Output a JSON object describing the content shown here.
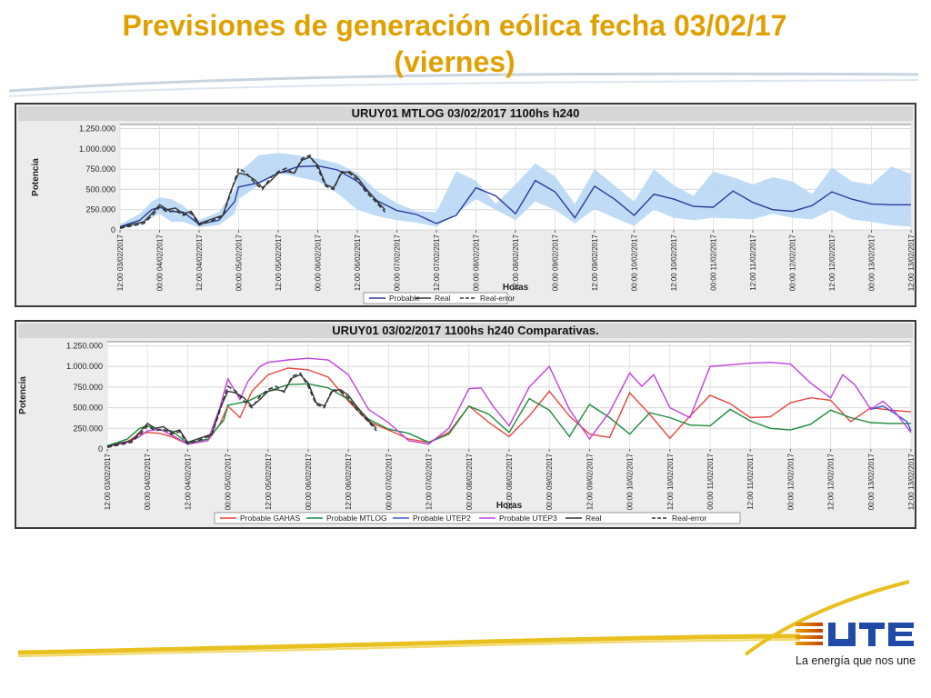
{
  "page": {
    "title_line1": "Previsiones de generación eólica fecha 03/02/17",
    "title_line2": "(viernes)",
    "slogan": "La energía que nos une",
    "colors": {
      "title": "#e0a000",
      "band": "#b9d7f5",
      "mtlog": "#2a3a9a",
      "gahas": "#e8453c",
      "mtlog2": "#1e8a3c",
      "utep2": "#3a5ad0",
      "utep3": "#c040e0",
      "real": "#333333"
    }
  },
  "chart_data": [
    {
      "type": "line",
      "title": "URUY01  MTLOG  03/02/2017  1100hs   h240",
      "xlabel": "Horas",
      "ylabel": "Potencia",
      "ylim": [
        0,
        1300000
      ],
      "yticks": [
        0,
        250000,
        500000,
        750000,
        1000000,
        1250000
      ],
      "ytick_labels": [
        "0",
        "250.000",
        "500.000",
        "750.000",
        "1.000.000",
        "1.250.000"
      ],
      "xlim": [
        0,
        20
      ],
      "xticks": [
        0,
        1,
        2,
        3,
        4,
        5,
        6,
        7,
        8,
        9,
        10,
        11,
        12,
        13,
        14,
        15,
        16,
        17,
        18,
        19,
        20
      ],
      "xtick_labels": [
        "12:00 03/02/2017",
        "00:00 04/02/2017",
        "12:00 04/02/2017",
        "00:00 05/02/2017",
        "12:00 05/02/2017",
        "00:00 06/02/2017",
        "12:00 06/02/2017",
        "00:00 07/02/2017",
        "12:00 07/02/2017",
        "00:00 08/02/2017",
        "12:00 08/02/2017",
        "00:00 09/02/2017",
        "12:00 09/02/2017",
        "00:00 10/02/2017",
        "12:00 10/02/2017",
        "00:00 11/02/2017",
        "12:00 11/02/2017",
        "00:00 12/02/2017",
        "12:00 12/02/2017",
        "00:00 13/02/2017",
        "12:00 13/02/2017"
      ],
      "legend": [
        "Probable",
        "Real",
        "Real-error"
      ],
      "legend_position": "bottom",
      "band": {
        "x": [
          0,
          0.5,
          0.8,
          1.0,
          1.3,
          1.6,
          2.0,
          2.5,
          2.9,
          3.0,
          3.5,
          4.0,
          4.5,
          5.0,
          5.5,
          6.0,
          6.5,
          7.0,
          7.5,
          8.0,
          8.5,
          9.0,
          9.5,
          10.0,
          10.5,
          11.0,
          11.5,
          12.0,
          12.5,
          13.0,
          13.5,
          14.0,
          14.5,
          15.0,
          15.5,
          16.0,
          16.5,
          17.0,
          17.5,
          18.0,
          18.5,
          19.0,
          19.5,
          20.0
        ],
        "low": [
          20000,
          60000,
          150000,
          200000,
          100000,
          100000,
          30000,
          60000,
          200000,
          380000,
          550000,
          700000,
          650000,
          600000,
          450000,
          250000,
          170000,
          120000,
          90000,
          40000,
          200000,
          380000,
          250000,
          120000,
          350000,
          250000,
          80000,
          260000,
          150000,
          50000,
          250000,
          150000,
          120000,
          150000,
          140000,
          130000,
          200000,
          150000,
          130000,
          250000,
          130000,
          100000,
          60000,
          40000
        ],
        "high": [
          70000,
          200000,
          350000,
          400000,
          380000,
          300000,
          120000,
          220000,
          500000,
          700000,
          920000,
          950000,
          920000,
          880000,
          820000,
          700000,
          480000,
          330000,
          230000,
          220000,
          720000,
          610000,
          320000,
          560000,
          820000,
          660000,
          320000,
          750000,
          550000,
          350000,
          750000,
          550000,
          420000,
          720000,
          650000,
          560000,
          650000,
          600000,
          440000,
          770000,
          600000,
          560000,
          780000,
          690000
        ]
      },
      "series": [
        {
          "name": "Probable",
          "color": "#2a3a9a",
          "x": [
            0,
            0.5,
            0.8,
            1.0,
            1.3,
            1.6,
            2.0,
            2.5,
            2.9,
            3.0,
            3.5,
            4.0,
            4.5,
            5.0,
            5.5,
            6.0,
            6.5,
            7.0,
            7.5,
            8.0,
            8.5,
            9.0,
            9.5,
            10.0,
            10.5,
            11.0,
            11.5,
            12.0,
            12.5,
            13.0,
            13.5,
            14.0,
            14.5,
            15.0,
            15.5,
            16.0,
            16.5,
            17.0,
            17.5,
            18.0,
            18.5,
            19.0,
            19.5,
            20.0
          ],
          "y": [
            40000,
            120000,
            250000,
            280000,
            230000,
            220000,
            70000,
            120000,
            350000,
            530000,
            580000,
            700000,
            780000,
            790000,
            740000,
            600000,
            360000,
            240000,
            190000,
            80000,
            180000,
            520000,
            420000,
            200000,
            610000,
            470000,
            150000,
            540000,
            380000,
            180000,
            440000,
            380000,
            290000,
            280000,
            480000,
            340000,
            250000,
            230000,
            300000,
            470000,
            380000,
            320000,
            310000,
            310000
          ]
        },
        {
          "name": "Real",
          "color": "#333333",
          "dash": false,
          "x": [
            0,
            0.3,
            0.6,
            0.8,
            1.0,
            1.2,
            1.4,
            1.6,
            1.8,
            2.0,
            2.3,
            2.6,
            2.8,
            3.0,
            3.2,
            3.4,
            3.6,
            3.8,
            4.0,
            4.2,
            4.4,
            4.6,
            4.8,
            5.0,
            5.2,
            5.4,
            5.6,
            5.8,
            6.0,
            6.2,
            6.5,
            6.7
          ],
          "y": [
            30000,
            70000,
            100000,
            200000,
            310000,
            250000,
            270000,
            200000,
            230000,
            80000,
            130000,
            180000,
            480000,
            700000,
            680000,
            620000,
            520000,
            600000,
            700000,
            720000,
            700000,
            860000,
            900000,
            800000,
            560000,
            520000,
            700000,
            720000,
            650000,
            520000,
            350000,
            250000
          ]
        },
        {
          "name": "Real-error",
          "color": "#333333",
          "dash": true,
          "x": [
            0,
            0.3,
            0.6,
            0.8,
            1.0,
            1.2,
            1.4,
            1.6,
            1.8,
            2.0,
            2.3,
            2.6,
            2.8,
            3.0,
            3.2,
            3.4,
            3.6,
            3.8,
            4.0,
            4.2,
            4.4,
            4.6,
            4.8,
            5.0,
            5.2,
            5.4,
            5.6,
            5.8,
            6.0,
            6.2,
            6.5,
            6.7
          ],
          "y": [
            20000,
            50000,
            80000,
            170000,
            280000,
            220000,
            240000,
            180000,
            210000,
            60000,
            110000,
            170000,
            460000,
            760000,
            700000,
            580000,
            500000,
            640000,
            720000,
            760000,
            690000,
            880000,
            920000,
            760000,
            540000,
            500000,
            720000,
            700000,
            620000,
            480000,
            330000,
            220000
          ]
        }
      ]
    },
    {
      "type": "line",
      "title": "URUY01  03/02/2017  1100hs   h240  Comparativas.",
      "xlabel": "Horas",
      "ylabel": "Potencia",
      "ylim": [
        0,
        1300000
      ],
      "yticks": [
        0,
        250000,
        500000,
        750000,
        1000000,
        1250000
      ],
      "ytick_labels": [
        "0",
        "250.000",
        "500.000",
        "750.000",
        "1.000.000",
        "1.250.000"
      ],
      "xlim": [
        0,
        20
      ],
      "xticks": [
        0,
        1,
        2,
        3,
        4,
        5,
        6,
        7,
        8,
        9,
        10,
        11,
        12,
        13,
        14,
        15,
        16,
        17,
        18,
        19,
        20
      ],
      "xtick_labels": [
        "12:00 03/02/2017",
        "00:00 04/02/2017",
        "12:00 04/02/2017",
        "00:00 05/02/2017",
        "12:00 05/02/2017",
        "00:00 06/02/2017",
        "12:00 06/02/2017",
        "00:00 07/02/2017",
        "12:00 07/02/2017",
        "00:00 08/02/2017",
        "12:00 08/02/2017",
        "00:00 09/02/2017",
        "12:00 09/02/2017",
        "00:00 10/02/2017",
        "12:00 10/02/2017",
        "00:00 11/02/2017",
        "12:00 11/02/2017",
        "00:00 12/02/2017",
        "12:00 12/02/2017",
        "00:00 13/02/2017",
        "12:00 13/02/2017"
      ],
      "legend": [
        "Probable GAHAS",
        "Probable MTLOG",
        "Probable UTEP2",
        "Probable UTEP3",
        "Real",
        "Real-error"
      ],
      "legend_position": "bottom",
      "series": [
        {
          "name": "Probable GAHAS",
          "color": "#e8453c",
          "x": [
            0,
            0.5,
            0.8,
            1.0,
            1.3,
            1.6,
            2.0,
            2.5,
            2.8,
            3.0,
            3.3,
            3.6,
            4.0,
            4.5,
            5.0,
            5.5,
            6.0,
            6.5,
            7.0,
            7.5,
            8.0,
            8.5,
            9.0,
            9.5,
            10.0,
            10.5,
            11.0,
            11.5,
            12.0,
            12.5,
            13.0,
            13.5,
            14.0,
            14.5,
            15.0,
            15.5,
            16.0,
            16.5,
            17.0,
            17.5,
            18.0,
            18.5,
            19.0,
            19.5,
            20.0
          ],
          "y": [
            30000,
            90000,
            180000,
            200000,
            190000,
            150000,
            60000,
            100000,
            300000,
            520000,
            380000,
            700000,
            900000,
            980000,
            960000,
            870000,
            580000,
            330000,
            230000,
            120000,
            80000,
            200000,
            520000,
            320000,
            150000,
            400000,
            700000,
            400000,
            180000,
            140000,
            680000,
            420000,
            130000,
            400000,
            650000,
            550000,
            380000,
            390000,
            560000,
            620000,
            590000,
            330000,
            500000,
            470000,
            450000
          ]
        },
        {
          "name": "Probable MTLOG",
          "color": "#1e8a3c",
          "x": [
            0,
            0.5,
            0.8,
            1.0,
            1.3,
            1.6,
            2.0,
            2.5,
            2.9,
            3.0,
            3.5,
            4.0,
            4.5,
            5.0,
            5.5,
            6.0,
            6.5,
            7.0,
            7.5,
            8.0,
            8.5,
            9.0,
            9.5,
            10.0,
            10.5,
            11.0,
            11.5,
            12.0,
            12.5,
            13.0,
            13.5,
            14.0,
            14.5,
            15.0,
            15.5,
            16.0,
            16.5,
            17.0,
            17.5,
            18.0,
            18.5,
            19.0,
            19.5,
            20.0
          ],
          "y": [
            40000,
            120000,
            250000,
            280000,
            230000,
            220000,
            70000,
            120000,
            350000,
            530000,
            580000,
            700000,
            780000,
            790000,
            740000,
            600000,
            360000,
            240000,
            190000,
            80000,
            180000,
            520000,
            420000,
            200000,
            610000,
            470000,
            150000,
            540000,
            380000,
            180000,
            440000,
            380000,
            290000,
            280000,
            480000,
            340000,
            250000,
            230000,
            300000,
            470000,
            380000,
            320000,
            310000,
            310000
          ]
        },
        {
          "name": "Probable UTEP2",
          "color": "#3a5ad0",
          "x": [
            19.0,
            19.3,
            19.6,
            19.9,
            20.0
          ],
          "y": [
            480000,
            520000,
            430000,
            330000,
            220000
          ]
        },
        {
          "name": "Probable UTEP3",
          "color": "#c040e0",
          "x": [
            0,
            0.5,
            0.8,
            1.0,
            1.3,
            1.6,
            2.0,
            2.5,
            2.8,
            3.0,
            3.3,
            3.5,
            3.8,
            4.0,
            4.5,
            5.0,
            5.5,
            6.0,
            6.5,
            7.0,
            7.5,
            8.0,
            8.5,
            9.0,
            9.3,
            9.6,
            10.0,
            10.5,
            11.0,
            11.5,
            12.0,
            12.5,
            13.0,
            13.3,
            13.6,
            14.0,
            14.5,
            15.0,
            15.5,
            16.0,
            16.5,
            17.0,
            17.5,
            18.0,
            18.3,
            18.6,
            19.0,
            19.3,
            19.6,
            20.0
          ],
          "y": [
            30000,
            80000,
            150000,
            220000,
            240000,
            170000,
            60000,
            100000,
            500000,
            850000,
            600000,
            820000,
            1000000,
            1050000,
            1080000,
            1100000,
            1080000,
            900000,
            480000,
            320000,
            100000,
            60000,
            250000,
            730000,
            740000,
            520000,
            280000,
            750000,
            1000000,
            480000,
            120000,
            450000,
            920000,
            760000,
            900000,
            500000,
            380000,
            1000000,
            1020000,
            1040000,
            1050000,
            1030000,
            800000,
            620000,
            900000,
            780000,
            480000,
            580000,
            450000,
            200000
          ]
        },
        {
          "name": "Real",
          "color": "#333333",
          "dash": false,
          "x": [
            0,
            0.3,
            0.6,
            0.8,
            1.0,
            1.2,
            1.4,
            1.6,
            1.8,
            2.0,
            2.3,
            2.6,
            2.8,
            3.0,
            3.2,
            3.4,
            3.6,
            3.8,
            4.0,
            4.2,
            4.4,
            4.6,
            4.8,
            5.0,
            5.2,
            5.4,
            5.6,
            5.8,
            6.0,
            6.2,
            6.5,
            6.7
          ],
          "y": [
            30000,
            70000,
            100000,
            200000,
            310000,
            250000,
            270000,
            200000,
            230000,
            80000,
            130000,
            180000,
            480000,
            700000,
            680000,
            620000,
            520000,
            600000,
            700000,
            720000,
            700000,
            860000,
            900000,
            800000,
            560000,
            520000,
            700000,
            720000,
            650000,
            520000,
            350000,
            250000
          ]
        },
        {
          "name": "Real-error",
          "color": "#333333",
          "dash": true,
          "x": [
            0,
            0.3,
            0.6,
            0.8,
            1.0,
            1.2,
            1.4,
            1.6,
            1.8,
            2.0,
            2.3,
            2.6,
            2.8,
            3.0,
            3.2,
            3.4,
            3.6,
            3.8,
            4.0,
            4.2,
            4.4,
            4.6,
            4.8,
            5.0,
            5.2,
            5.4,
            5.6,
            5.8,
            6.0,
            6.2,
            6.5,
            6.7
          ],
          "y": [
            20000,
            50000,
            80000,
            170000,
            280000,
            220000,
            240000,
            180000,
            210000,
            60000,
            110000,
            170000,
            460000,
            760000,
            700000,
            580000,
            500000,
            640000,
            720000,
            760000,
            690000,
            880000,
            920000,
            760000,
            540000,
            500000,
            720000,
            700000,
            620000,
            480000,
            330000,
            220000
          ]
        }
      ]
    }
  ]
}
